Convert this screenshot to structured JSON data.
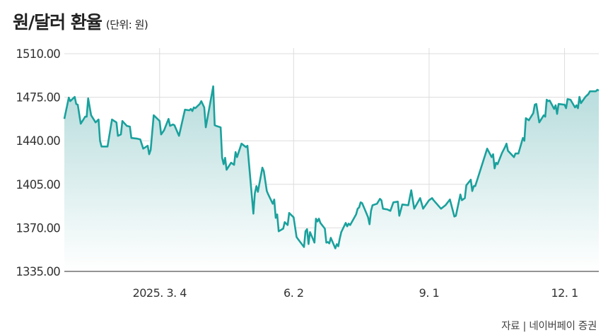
{
  "title": "원/달러 환율",
  "unit": "(단위: 원)",
  "source": "자료 | 네이버페이 증권",
  "colors": {
    "line": "#1aa19d",
    "fill_top": "#b7dcdc",
    "fill_bottom": "#ffffff",
    "grid": "#dddddd",
    "axis": "#555555"
  },
  "chart_data": {
    "type": "area",
    "title": "원/달러 환율",
    "ylabel": "",
    "xlabel": "",
    "ylim": [
      1335,
      1510
    ],
    "xlim": [
      "2024-12-30",
      "2025-12-24"
    ],
    "grid": true,
    "yticks": [
      1335,
      1370,
      1405,
      1440,
      1475,
      1510
    ],
    "ytick_labels": [
      "1335.00",
      "1370.00",
      "1405.00",
      "1440.00",
      "1475.00",
      "1510.00"
    ],
    "xticks": [
      "2025-03-04",
      "2025-06-02",
      "2025-09-01",
      "2025-12-01"
    ],
    "xtick_labels": [
      "2025. 3. 4",
      "6. 2",
      "9. 1",
      "12. 1"
    ],
    "points": [
      [
        "2024-12-30",
        1457.6
      ],
      [
        "2025-01-02",
        1474.7
      ],
      [
        "2025-01-03",
        1471.9
      ],
      [
        "2025-01-06",
        1475.3
      ],
      [
        "2025-01-07",
        1469.6
      ],
      [
        "2025-01-08",
        1469.0
      ],
      [
        "2025-01-10",
        1453.7
      ],
      [
        "2025-01-13",
        1459.4
      ],
      [
        "2025-01-14",
        1459.4
      ],
      [
        "2025-01-15",
        1474.1
      ],
      [
        "2025-01-17",
        1460.5
      ],
      [
        "2025-01-20",
        1454.8
      ],
      [
        "2025-01-22",
        1457.1
      ],
      [
        "2025-01-23",
        1440.0
      ],
      [
        "2025-01-24",
        1435.4
      ],
      [
        "2025-01-28",
        1435.4
      ],
      [
        "2025-01-31",
        1457.1
      ],
      [
        "2025-02-03",
        1454.8
      ],
      [
        "2025-02-04",
        1444.0
      ],
      [
        "2025-02-06",
        1445.1
      ],
      [
        "2025-02-07",
        1455.9
      ],
      [
        "2025-02-10",
        1452.0
      ],
      [
        "2025-02-12",
        1451.4
      ],
      [
        "2025-02-13",
        1442.3
      ],
      [
        "2025-02-17",
        1441.7
      ],
      [
        "2025-02-19",
        1441.1
      ],
      [
        "2025-02-21",
        1433.7
      ],
      [
        "2025-02-24",
        1436.0
      ],
      [
        "2025-02-25",
        1429.2
      ],
      [
        "2025-02-26",
        1432.6
      ],
      [
        "2025-02-28",
        1460.5
      ],
      [
        "2025-03-04",
        1455.9
      ],
      [
        "2025-03-05",
        1445.1
      ],
      [
        "2025-03-07",
        1448.5
      ],
      [
        "2025-03-10",
        1457.6
      ],
      [
        "2025-03-11",
        1452.0
      ],
      [
        "2025-03-13",
        1453.1
      ],
      [
        "2025-03-14",
        1452.5
      ],
      [
        "2025-03-17",
        1444.0
      ],
      [
        "2025-03-21",
        1465.0
      ],
      [
        "2025-03-24",
        1464.5
      ],
      [
        "2025-03-25",
        1465.6
      ],
      [
        "2025-03-26",
        1463.9
      ],
      [
        "2025-03-27",
        1466.8
      ],
      [
        "2025-03-28",
        1466.2
      ],
      [
        "2025-03-31",
        1469.6
      ],
      [
        "2025-04-01",
        1471.9
      ],
      [
        "2025-04-03",
        1466.8
      ],
      [
        "2025-04-04",
        1450.8
      ],
      [
        "2025-04-09",
        1483.8
      ],
      [
        "2025-04-10",
        1452.5
      ],
      [
        "2025-04-11",
        1452.0
      ],
      [
        "2025-04-14",
        1450.8
      ],
      [
        "2025-04-15",
        1426.3
      ],
      [
        "2025-04-16",
        1421.2
      ],
      [
        "2025-04-17",
        1426.3
      ],
      [
        "2025-04-18",
        1416.7
      ],
      [
        "2025-04-21",
        1422.4
      ],
      [
        "2025-04-23",
        1420.7
      ],
      [
        "2025-04-24",
        1430.9
      ],
      [
        "2025-04-25",
        1426.9
      ],
      [
        "2025-04-28",
        1437.7
      ],
      [
        "2025-05-01",
        1434.9
      ],
      [
        "2025-05-02",
        1436.0
      ],
      [
        "2025-05-06",
        1381.4
      ],
      [
        "2025-05-07",
        1397.9
      ],
      [
        "2025-05-08",
        1403.6
      ],
      [
        "2025-05-09",
        1399.0
      ],
      [
        "2025-05-12",
        1418.4
      ],
      [
        "2025-05-13",
        1415.5
      ],
      [
        "2025-05-15",
        1399.6
      ],
      [
        "2025-05-16",
        1396.8
      ],
      [
        "2025-05-19",
        1389.4
      ],
      [
        "2025-05-20",
        1392.8
      ],
      [
        "2025-05-21",
        1378.0
      ],
      [
        "2025-05-22",
        1380.8
      ],
      [
        "2025-05-23",
        1367.2
      ],
      [
        "2025-05-26",
        1369.4
      ],
      [
        "2025-05-27",
        1374.6
      ],
      [
        "2025-05-29",
        1372.3
      ],
      [
        "2025-05-30",
        1382.0
      ],
      [
        "2025-06-02",
        1378.5
      ],
      [
        "2025-06-04",
        1362.6
      ],
      [
        "2025-06-05",
        1360.9
      ],
      [
        "2025-06-09",
        1354.6
      ],
      [
        "2025-06-10",
        1367.2
      ],
      [
        "2025-06-11",
        1368.9
      ],
      [
        "2025-06-12",
        1357.0
      ],
      [
        "2025-06-13",
        1366.6
      ],
      [
        "2025-06-16",
        1358.1
      ],
      [
        "2025-06-17",
        1377.4
      ],
      [
        "2025-06-18",
        1375.1
      ],
      [
        "2025-06-19",
        1377.4
      ],
      [
        "2025-06-20",
        1374.0
      ],
      [
        "2025-06-23",
        1369.4
      ],
      [
        "2025-06-24",
        1358.1
      ],
      [
        "2025-06-25",
        1358.6
      ],
      [
        "2025-06-26",
        1357.5
      ],
      [
        "2025-06-27",
        1362.0
      ],
      [
        "2025-06-30",
        1353.5
      ],
      [
        "2025-07-01",
        1356.9
      ],
      [
        "2025-07-02",
        1355.2
      ],
      [
        "2025-07-03",
        1361.5
      ],
      [
        "2025-07-04",
        1366.6
      ],
      [
        "2025-07-07",
        1374.0
      ],
      [
        "2025-07-08",
        1371.2
      ],
      [
        "2025-07-09",
        1373.4
      ],
      [
        "2025-07-10",
        1372.3
      ],
      [
        "2025-07-14",
        1380.8
      ],
      [
        "2025-07-15",
        1385.4
      ],
      [
        "2025-07-16",
        1386.5
      ],
      [
        "2025-07-17",
        1390.5
      ],
      [
        "2025-07-18",
        1389.9
      ],
      [
        "2025-07-21",
        1381.4
      ],
      [
        "2025-07-22",
        1378.5
      ],
      [
        "2025-07-23",
        1372.9
      ],
      [
        "2025-07-24",
        1383.7
      ],
      [
        "2025-07-25",
        1388.2
      ],
      [
        "2025-07-28",
        1389.4
      ],
      [
        "2025-07-30",
        1393.3
      ],
      [
        "2025-07-31",
        1392.2
      ],
      [
        "2025-08-01",
        1385.4
      ],
      [
        "2025-08-04",
        1384.8
      ],
      [
        "2025-08-06",
        1383.7
      ],
      [
        "2025-08-08",
        1390.5
      ],
      [
        "2025-08-11",
        1391.1
      ],
      [
        "2025-08-12",
        1379.7
      ],
      [
        "2025-08-14",
        1388.8
      ],
      [
        "2025-08-18",
        1388.2
      ],
      [
        "2025-08-20",
        1400.2
      ],
      [
        "2025-08-22",
        1385.4
      ],
      [
        "2025-08-26",
        1393.9
      ],
      [
        "2025-08-28",
        1385.4
      ],
      [
        "2025-09-01",
        1392.2
      ],
      [
        "2025-09-03",
        1393.9
      ],
      [
        "2025-09-04",
        1392.2
      ],
      [
        "2025-09-09",
        1385.4
      ],
      [
        "2025-09-12",
        1388.2
      ],
      [
        "2025-09-15",
        1392.8
      ],
      [
        "2025-09-18",
        1379.1
      ],
      [
        "2025-09-19",
        1379.7
      ],
      [
        "2025-09-22",
        1396.8
      ],
      [
        "2025-09-23",
        1392.2
      ],
      [
        "2025-09-25",
        1393.9
      ],
      [
        "2025-09-26",
        1404.2
      ],
      [
        "2025-09-29",
        1408.7
      ],
      [
        "2025-09-30",
        1399.6
      ],
      [
        "2025-10-01",
        1403.6
      ],
      [
        "2025-10-02",
        1403.6
      ],
      [
        "2025-10-10",
        1433.7
      ],
      [
        "2025-10-13",
        1426.9
      ],
      [
        "2025-10-14",
        1429.2
      ],
      [
        "2025-10-15",
        1417.8
      ],
      [
        "2025-10-16",
        1422.4
      ],
      [
        "2025-10-17",
        1421.2
      ],
      [
        "2025-10-20",
        1430.3
      ],
      [
        "2025-10-22",
        1434.9
      ],
      [
        "2025-10-23",
        1437.7
      ],
      [
        "2025-10-24",
        1432.0
      ],
      [
        "2025-10-28",
        1426.9
      ],
      [
        "2025-10-29",
        1429.8
      ],
      [
        "2025-10-31",
        1429.8
      ],
      [
        "2025-11-03",
        1442.3
      ],
      [
        "2025-11-04",
        1440.0
      ],
      [
        "2025-11-05",
        1458.2
      ],
      [
        "2025-11-07",
        1456.5
      ],
      [
        "2025-11-10",
        1462.2
      ],
      [
        "2025-11-11",
        1469.0
      ],
      [
        "2025-11-12",
        1469.6
      ],
      [
        "2025-11-14",
        1454.8
      ],
      [
        "2025-11-17",
        1460.5
      ],
      [
        "2025-11-18",
        1459.4
      ],
      [
        "2025-11-19",
        1473.0
      ],
      [
        "2025-11-20",
        1471.9
      ],
      [
        "2025-11-21",
        1472.4
      ],
      [
        "2025-11-24",
        1465.6
      ],
      [
        "2025-11-25",
        1468.5
      ],
      [
        "2025-11-26",
        1461.6
      ],
      [
        "2025-11-27",
        1469.6
      ],
      [
        "2025-12-01",
        1469.0
      ],
      [
        "2025-12-02",
        1466.2
      ],
      [
        "2025-12-03",
        1473.6
      ],
      [
        "2025-12-05",
        1473.0
      ],
      [
        "2025-12-08",
        1466.8
      ],
      [
        "2025-12-09",
        1468.5
      ],
      [
        "2025-12-10",
        1466.2
      ],
      [
        "2025-12-11",
        1475.3
      ],
      [
        "2025-12-12",
        1470.2
      ],
      [
        "2025-12-15",
        1475.3
      ],
      [
        "2025-12-17",
        1477.6
      ],
      [
        "2025-12-18",
        1479.8
      ],
      [
        "2025-12-22",
        1479.8
      ],
      [
        "2025-12-23",
        1481.0
      ],
      [
        "2025-12-24",
        1480.4
      ]
    ]
  }
}
